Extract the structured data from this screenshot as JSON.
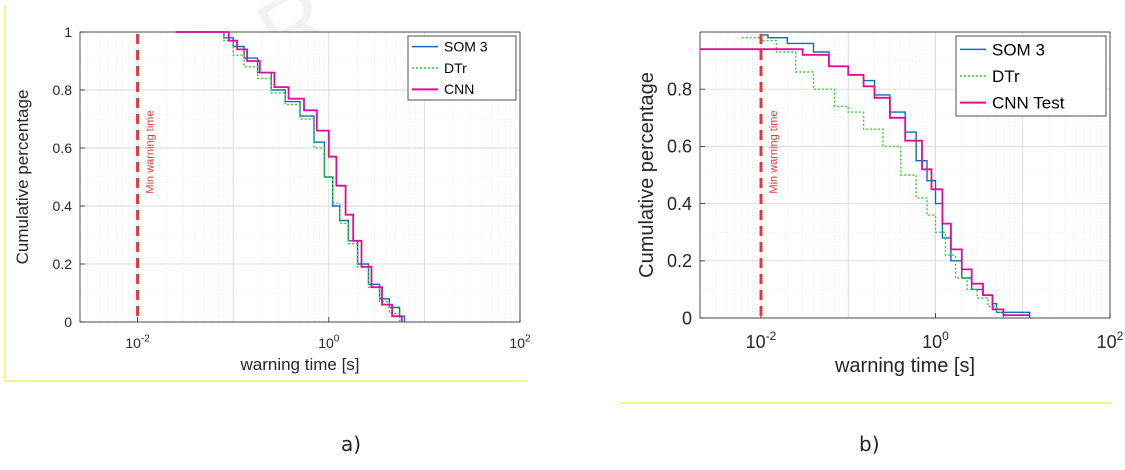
{
  "watermark": "AR",
  "colors": {
    "som": "#0072BD",
    "dtr": "#33cc33",
    "cnn": "#e60a96",
    "min_line": "#e8363e",
    "frame_rule": "#f4f06a",
    "grid": "#d9d9d9",
    "axes": "#262626"
  },
  "chart_data": [
    {
      "type": "line",
      "panel_label": "a)",
      "xlabel": "warning time [s]",
      "ylabel": "Cumulative percentage",
      "xscale": "log",
      "xlim": [
        0.0025,
        100
      ],
      "ylim": [
        0,
        1
      ],
      "x_ticks": [
        {
          "value": 0.01,
          "base": "10",
          "exp": "-2"
        },
        {
          "value": 1,
          "base": "10",
          "exp": "0"
        },
        {
          "value": 100,
          "base": "10",
          "exp": "2"
        }
      ],
      "y_ticks": [
        {
          "value": 0,
          "label": "0"
        },
        {
          "value": 0.2,
          "label": "0.2"
        },
        {
          "value": 0.4,
          "label": "0.4"
        },
        {
          "value": 0.6,
          "label": "0.6"
        },
        {
          "value": 0.8,
          "label": "0.8"
        },
        {
          "value": 1,
          "label": "1"
        }
      ],
      "grid": true,
      "legend_position": "top-right",
      "vline": {
        "x": 0.01,
        "label": "Min warning time"
      },
      "series": [
        {
          "name": "SOM 3",
          "color_key": "som",
          "dash": "",
          "x": [
            0.025,
            0.06,
            0.08,
            0.1,
            0.13,
            0.18,
            0.25,
            0.35,
            0.5,
            0.7,
            0.9,
            1.1,
            1.3,
            1.6,
            2.0,
            2.6,
            3.4,
            4.3,
            5.5,
            6.2
          ],
          "y": [
            1.0,
            1.0,
            0.98,
            0.95,
            0.91,
            0.86,
            0.8,
            0.76,
            0.71,
            0.62,
            0.5,
            0.4,
            0.35,
            0.28,
            0.2,
            0.13,
            0.08,
            0.05,
            0.02,
            0.0
          ]
        },
        {
          "name": "DTr",
          "color_key": "dtr",
          "dash": "2,2",
          "x": [
            0.025,
            0.06,
            0.08,
            0.1,
            0.13,
            0.18,
            0.25,
            0.35,
            0.5,
            0.7,
            0.9,
            1.1,
            1.3,
            1.6,
            2.0,
            2.6,
            3.4,
            4.3,
            5.5
          ],
          "y": [
            1.0,
            1.0,
            0.97,
            0.92,
            0.88,
            0.84,
            0.79,
            0.75,
            0.7,
            0.6,
            0.5,
            0.41,
            0.34,
            0.27,
            0.19,
            0.12,
            0.07,
            0.03,
            0.0
          ]
        },
        {
          "name": "CNN",
          "color_key": "cnn",
          "dash": "",
          "x": [
            0.025,
            0.07,
            0.09,
            0.11,
            0.14,
            0.19,
            0.27,
            0.38,
            0.55,
            0.75,
            1.0,
            1.2,
            1.5,
            1.8,
            2.2,
            2.8,
            3.6,
            4.6,
            5.8
          ],
          "y": [
            1.0,
            1.0,
            0.97,
            0.94,
            0.9,
            0.86,
            0.81,
            0.77,
            0.73,
            0.66,
            0.57,
            0.47,
            0.37,
            0.28,
            0.19,
            0.12,
            0.06,
            0.02,
            0.0
          ]
        }
      ]
    },
    {
      "type": "line",
      "panel_label": "b)",
      "xlabel": "warning time [s]",
      "ylabel": "Cumulative percentage",
      "xscale": "log",
      "xlim": [
        0.002,
        100
      ],
      "ylim": [
        0,
        1
      ],
      "x_ticks": [
        {
          "value": 0.01,
          "base": "10",
          "exp": "-2"
        },
        {
          "value": 1,
          "base": "10",
          "exp": "0"
        },
        {
          "value": 100,
          "base": "10",
          "exp": "2"
        }
      ],
      "y_ticks": [
        {
          "value": 0,
          "label": "0"
        },
        {
          "value": 0.2,
          "label": "0.2"
        },
        {
          "value": 0.4,
          "label": "0.4"
        },
        {
          "value": 0.6,
          "label": "0.6"
        },
        {
          "value": 0.8,
          "label": "0.8"
        }
      ],
      "grid": true,
      "legend_position": "top-right",
      "vline": {
        "x": 0.01,
        "label": "Min warning time"
      },
      "series": [
        {
          "name": "SOM 3",
          "color_key": "som",
          "dash": "",
          "x": [
            0.01,
            0.012,
            0.02,
            0.04,
            0.06,
            0.1,
            0.15,
            0.2,
            0.3,
            0.45,
            0.6,
            0.8,
            1.0,
            1.2,
            1.5,
            2.0,
            2.6,
            3.5,
            4.5,
            5.0,
            6.0,
            12.0
          ],
          "y": [
            0.99,
            0.98,
            0.96,
            0.93,
            0.88,
            0.85,
            0.83,
            0.78,
            0.72,
            0.65,
            0.55,
            0.48,
            0.4,
            0.28,
            0.2,
            0.14,
            0.1,
            0.08,
            0.05,
            0.02,
            0.02,
            0.0
          ]
        },
        {
          "name": "DTr",
          "color_key": "dtr",
          "dash": "2,2",
          "x": [
            0.006,
            0.01,
            0.015,
            0.025,
            0.04,
            0.07,
            0.1,
            0.15,
            0.25,
            0.4,
            0.6,
            0.8,
            1.0,
            1.3,
            1.7,
            2.3,
            3.0,
            4.0,
            5.0,
            6.0
          ],
          "y": [
            0.98,
            0.97,
            0.93,
            0.86,
            0.8,
            0.74,
            0.72,
            0.66,
            0.6,
            0.5,
            0.42,
            0.36,
            0.3,
            0.22,
            0.14,
            0.1,
            0.07,
            0.04,
            0.02,
            0.0
          ]
        },
        {
          "name": "CNN Test",
          "color_key": "cnn",
          "dash": "",
          "x": [
            0.002,
            0.01,
            0.03,
            0.06,
            0.1,
            0.15,
            0.2,
            0.3,
            0.45,
            0.7,
            0.9,
            1.2,
            1.5,
            2.0,
            2.6,
            3.5,
            4.5,
            6.0,
            12.0
          ],
          "y": [
            0.94,
            0.94,
            0.92,
            0.88,
            0.85,
            0.81,
            0.77,
            0.7,
            0.62,
            0.52,
            0.45,
            0.33,
            0.24,
            0.17,
            0.12,
            0.08,
            0.03,
            0.01,
            0.01
          ]
        }
      ]
    }
  ]
}
